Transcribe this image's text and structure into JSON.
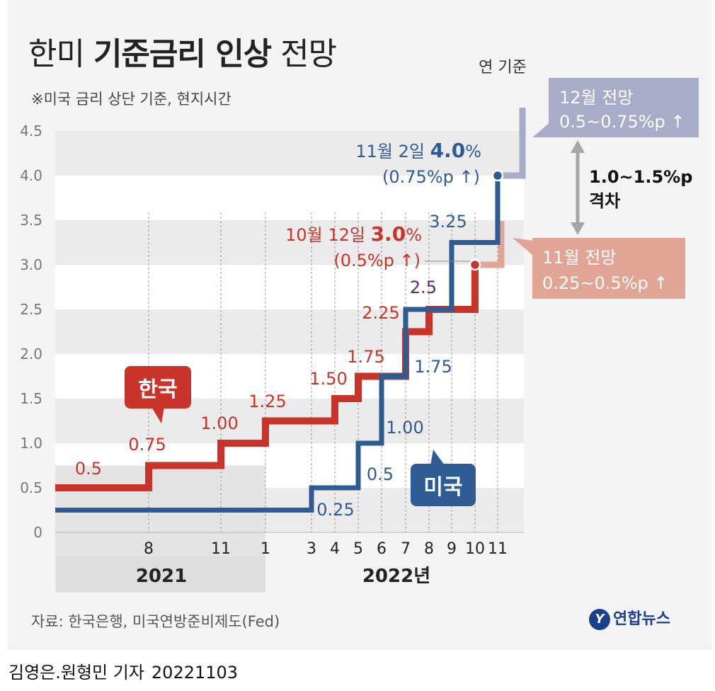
{
  "title": {
    "normal1": "한미 ",
    "bold": "기준금리 인상",
    "normal2": " 전망"
  },
  "subtitle": "※미국 금리 상단 기준, 현지시간",
  "source": "자료: 한국은행, 미국연방준비제도(Fed)",
  "logo": {
    "mark": "Y",
    "text": "연합뉴스"
  },
  "credit": {
    "author": "김영은.원형민 기자",
    "date": "20221103"
  },
  "colors": {
    "korea": "#c9342a",
    "us": "#2e5b94",
    "us_forecast": "#a7acc8",
    "korea_forecast": "#e0a595",
    "arrow": "#a6a6a6",
    "shade": "#e4e4e4",
    "band": "#ebebeb"
  },
  "chart_data": {
    "type": "line",
    "step": true,
    "ylim": [
      0,
      4.5
    ],
    "yticks": [
      "4.5",
      "4.0",
      "3.5",
      "3.0",
      "2.5",
      "2.0",
      "1.5",
      "1.0",
      "0.5",
      "0"
    ],
    "xticks": [
      "8",
      "11",
      "1",
      "3",
      "4",
      "5",
      "6",
      "7",
      "8",
      "9",
      "10",
      "11"
    ],
    "years": [
      "2021",
      "2022년"
    ],
    "series": [
      {
        "name": "한국",
        "x": [
          "start",
          "8",
          "11",
          "1",
          "4",
          "5",
          "7",
          "8",
          "10",
          "end"
        ],
        "y": [
          0.5,
          0.75,
          1.0,
          1.25,
          1.5,
          1.75,
          2.25,
          2.5,
          3.0,
          3.0
        ],
        "labels": [
          "0.5",
          "0.75",
          "1.00",
          "1.25",
          "1.50",
          "1.75",
          "2.25",
          "2.5"
        ]
      },
      {
        "name": "미국",
        "x": [
          "start",
          "3",
          "5",
          "6",
          "7",
          "9",
          "11"
        ],
        "y": [
          0.25,
          0.5,
          1.0,
          1.75,
          2.5,
          3.25,
          4.0
        ],
        "labels": [
          "0.25",
          "0.5",
          "1.00",
          "1.75",
          "2.5",
          "3.25"
        ]
      }
    ],
    "annotations": {
      "us_latest": {
        "line1_prefix": "11월 2일 ",
        "line1_value": "4.0",
        "line1_unit": "%",
        "line2": "(0.75%p ↑)"
      },
      "korea_latest": {
        "line1_prefix": "10월 12일 ",
        "line1_value": "3.0",
        "line1_unit": "%",
        "line2": "(0.5%p ↑)"
      },
      "year_basis": "연 기준",
      "us_forecast": {
        "line1": "12월 전망",
        "line2": "0.5~0.75%p ↑"
      },
      "korea_forecast": {
        "line1": "11월 전망",
        "line2": "0.25~0.5%p ↑"
      },
      "gap": {
        "line1": "1.0~1.5%p",
        "line2": "격차"
      }
    }
  }
}
